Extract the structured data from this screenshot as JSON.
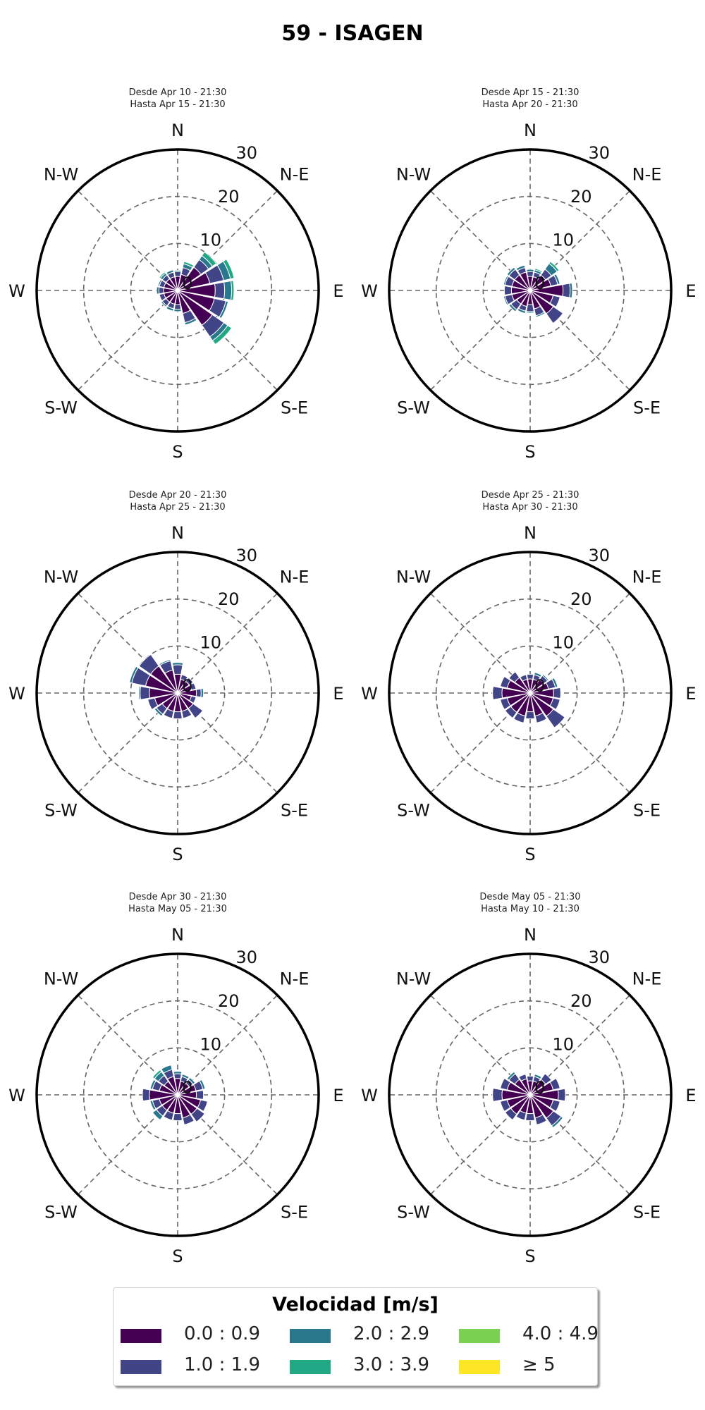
{
  "title": "59 - ISAGEN",
  "colors": {
    "bins": [
      "#440154",
      "#414487",
      "#2a788e",
      "#22a884",
      "#7ad151",
      "#fde725"
    ],
    "grid": "#666666",
    "frame": "#000000"
  },
  "chart_data": {
    "type": "windrose",
    "direction_count": 16,
    "radial_ticks": [
      0,
      10,
      20,
      30
    ],
    "rmax": 30,
    "grid": true,
    "direction_labels": [
      "N",
      "N-E",
      "E",
      "S-E",
      "S",
      "S-W",
      "W",
      "N-W"
    ],
    "legend": {
      "title": "Velocidad [m/s]",
      "position": "bottom-center",
      "bins": [
        "0.0 : 0.9",
        "1.0 : 1.9",
        "2.0 : 2.9",
        "3.0 : 3.9",
        "4.0 : 4.9",
        "≥  5"
      ]
    },
    "panels": [
      {
        "subtitle_line1": "Desde Apr 10 - 21:30",
        "subtitle_line2": "Hasta Apr 15 - 21:30",
        "directions_deg": [
          0,
          22.5,
          45,
          67.5,
          90,
          112.5,
          135,
          157.5,
          180,
          202.5,
          225,
          247.5,
          270,
          292.5,
          315,
          337.5
        ],
        "segments": [
          [
            3,
            1,
            0.3,
            0,
            0,
            0
          ],
          [
            3.5,
            1.5,
            0.8,
            0.5,
            0,
            0
          ],
          [
            6,
            2,
            1,
            1,
            0,
            0
          ],
          [
            7,
            3,
            1.5,
            0.8,
            0,
            0
          ],
          [
            8,
            2,
            1.5,
            0.5,
            0,
            0
          ],
          [
            8,
            2.5,
            0.5,
            0,
            0,
            0
          ],
          [
            9,
            3,
            1,
            1,
            0,
            0
          ],
          [
            5,
            2,
            0.5,
            0,
            0,
            0
          ],
          [
            3,
            1,
            0.5,
            0,
            0,
            0
          ],
          [
            3,
            1,
            0.5,
            0,
            0,
            0
          ],
          [
            3,
            1,
            0.3,
            0,
            0,
            0
          ],
          [
            3,
            1,
            0,
            0,
            0,
            0
          ],
          [
            3,
            1,
            0.5,
            0,
            0,
            0
          ],
          [
            3,
            1,
            0.3,
            0,
            0,
            0
          ],
          [
            3,
            1,
            0.5,
            0.3,
            0,
            0
          ],
          [
            3,
            1,
            0.5,
            0,
            0,
            0
          ]
        ]
      },
      {
        "subtitle_line1": "Desde Apr 15 - 21:30",
        "subtitle_line2": "Hasta Apr 20 - 21:30",
        "directions_deg": [
          0,
          22.5,
          45,
          67.5,
          90,
          112.5,
          135,
          157.5,
          180,
          202.5,
          225,
          247.5,
          270,
          292.5,
          315,
          337.5
        ],
        "segments": [
          [
            3,
            1,
            0.5,
            0,
            0,
            0
          ],
          [
            3,
            1,
            0.5,
            0.3,
            0,
            0
          ],
          [
            4,
            1.5,
            1.5,
            0.5,
            0,
            0
          ],
          [
            4.5,
            1.5,
            0.5,
            0,
            0,
            0
          ],
          [
            7,
            1.5,
            0.5,
            0,
            0,
            0
          ],
          [
            5,
            1.5,
            0,
            0,
            0,
            0
          ],
          [
            6,
            2.5,
            0,
            0,
            0,
            0
          ],
          [
            4,
            1.5,
            0.3,
            0,
            0,
            0
          ],
          [
            3,
            1.5,
            0.3,
            0,
            0,
            0
          ],
          [
            3.5,
            1,
            0.5,
            0,
            0,
            0
          ],
          [
            3.5,
            1.5,
            0.5,
            0,
            0,
            0
          ],
          [
            4,
            1.5,
            0.3,
            0,
            0,
            0
          ],
          [
            4,
            1.5,
            0,
            0,
            0,
            0
          ],
          [
            4,
            1.5,
            0.3,
            0,
            0,
            0
          ],
          [
            4,
            1.5,
            0.5,
            0,
            0,
            0
          ],
          [
            4,
            1,
            0.5,
            0,
            0,
            0
          ]
        ]
      },
      {
        "subtitle_line1": "Desde Apr 20 - 21:30",
        "subtitle_line2": "Hasta Apr 25 - 21:30",
        "directions_deg": [
          0,
          22.5,
          45,
          67.5,
          90,
          112.5,
          135,
          157.5,
          180,
          202.5,
          225,
          247.5,
          270,
          292.5,
          315,
          337.5
        ],
        "segments": [
          [
            4,
            2,
            0.5,
            0,
            0,
            0
          ],
          [
            3,
            1,
            0,
            0,
            0,
            0
          ],
          [
            3,
            1,
            0,
            0,
            0,
            0
          ],
          [
            3,
            1,
            0,
            0,
            0,
            0
          ],
          [
            4,
            1,
            0.5,
            0,
            0,
            0
          ],
          [
            3,
            1,
            0,
            0,
            0,
            0
          ],
          [
            4,
            2.5,
            0,
            0,
            0,
            0
          ],
          [
            4,
            1.5,
            0,
            0,
            0,
            0
          ],
          [
            4,
            1.5,
            0,
            0,
            0,
            0
          ],
          [
            4,
            1.5,
            0,
            0,
            0,
            0
          ],
          [
            4,
            1.5,
            0.5,
            0,
            0,
            0
          ],
          [
            5,
            1.5,
            0,
            0,
            0,
            0
          ],
          [
            6,
            2,
            0.3,
            0,
            0,
            0
          ],
          [
            7,
            3,
            0.5,
            0,
            0,
            0
          ],
          [
            7,
            3,
            0,
            0,
            0,
            0
          ],
          [
            5,
            2,
            0.3,
            0,
            0,
            0
          ]
        ]
      },
      {
        "subtitle_line1": "Desde Apr 25 - 21:30",
        "subtitle_line2": "Hasta Apr 30 - 21:30",
        "directions_deg": [
          0,
          22.5,
          45,
          67.5,
          90,
          112.5,
          135,
          157.5,
          180,
          202.5,
          225,
          247.5,
          270,
          292.5,
          315,
          337.5
        ],
        "segments": [
          [
            3,
            1,
            0,
            0,
            0,
            0
          ],
          [
            3,
            1,
            0.5,
            0,
            0,
            0
          ],
          [
            3.5,
            1,
            0.3,
            0,
            0,
            0
          ],
          [
            4,
            1.5,
            0.5,
            0,
            0,
            0
          ],
          [
            5,
            1.5,
            0,
            0,
            0,
            0
          ],
          [
            5,
            1.5,
            0,
            0,
            0,
            0
          ],
          [
            6,
            3,
            0,
            0,
            0,
            0
          ],
          [
            5,
            1.5,
            0,
            0,
            0,
            0
          ],
          [
            4,
            1.5,
            0,
            0,
            0,
            0
          ],
          [
            5,
            1.5,
            0,
            0,
            0,
            0
          ],
          [
            5,
            1.5,
            0,
            0,
            0,
            0
          ],
          [
            5,
            1.5,
            0,
            0,
            0,
            0
          ],
          [
            6,
            2,
            0,
            0,
            0,
            0
          ],
          [
            5,
            1.5,
            0,
            0,
            0,
            0
          ],
          [
            4,
            1.5,
            0,
            0,
            0,
            0
          ],
          [
            3,
            1,
            0,
            0,
            0,
            0
          ]
        ]
      },
      {
        "subtitle_line1": "Desde Apr 30 - 21:30",
        "subtitle_line2": "Hasta May 05 - 21:30",
        "directions_deg": [
          0,
          22.5,
          45,
          67.5,
          90,
          112.5,
          135,
          157.5,
          180,
          202.5,
          225,
          247.5,
          270,
          292.5,
          315,
          337.5
        ],
        "segments": [
          [
            3.5,
            1,
            0.5,
            0,
            0,
            0
          ],
          [
            3,
            1,
            0.5,
            0,
            0,
            0
          ],
          [
            3,
            1,
            0.5,
            0,
            0,
            0
          ],
          [
            4,
            1.5,
            0.5,
            0,
            0,
            0
          ],
          [
            4,
            1.5,
            0,
            0,
            0,
            0
          ],
          [
            5,
            1.5,
            0,
            0,
            0,
            0
          ],
          [
            5,
            2,
            0,
            0,
            0,
            0
          ],
          [
            5,
            1.5,
            0,
            0,
            0,
            0
          ],
          [
            4,
            1.5,
            0,
            0,
            0,
            0
          ],
          [
            4,
            1.5,
            0,
            0,
            0,
            0
          ],
          [
            4,
            1.5,
            1,
            0,
            0,
            0
          ],
          [
            4,
            1.5,
            0.5,
            0,
            0,
            0
          ],
          [
            6,
            1.5,
            0,
            0,
            0,
            0
          ],
          [
            4,
            1.5,
            0.5,
            0,
            0,
            0
          ],
          [
            3.5,
            1.5,
            1,
            0.5,
            0,
            0
          ],
          [
            4,
            1.5,
            1,
            0,
            0,
            0
          ]
        ]
      },
      {
        "subtitle_line1": "Desde May 05 - 21:30",
        "subtitle_line2": "Hasta May 10 - 21:30",
        "directions_deg": [
          0,
          22.5,
          45,
          67.5,
          90,
          112.5,
          135,
          157.5,
          180,
          202.5,
          225,
          247.5,
          270,
          292.5,
          315,
          337.5
        ],
        "segments": [
          [
            3,
            1,
            0,
            0,
            0,
            0
          ],
          [
            3,
            1,
            0.5,
            0,
            0,
            0
          ],
          [
            4,
            1.5,
            0,
            0,
            0,
            0
          ],
          [
            5,
            1.5,
            0,
            0,
            0,
            0
          ],
          [
            6,
            1.5,
            0,
            0,
            0,
            0
          ],
          [
            5,
            1.5,
            0,
            0,
            0,
            0
          ],
          [
            6,
            2,
            0.5,
            0,
            0,
            0
          ],
          [
            5,
            1.5,
            0,
            0,
            0,
            0
          ],
          [
            4,
            1.5,
            0,
            0,
            0,
            0
          ],
          [
            4,
            1.5,
            0,
            0,
            0,
            0
          ],
          [
            5,
            1.5,
            0,
            0,
            0,
            0
          ],
          [
            5,
            1.5,
            0,
            0,
            0,
            0
          ],
          [
            6,
            2,
            0,
            0,
            0,
            0
          ],
          [
            5,
            1.5,
            0,
            0,
            0,
            0
          ],
          [
            4,
            1.5,
            0.5,
            0,
            0,
            0
          ],
          [
            3.5,
            1,
            0,
            0,
            0,
            0
          ]
        ]
      }
    ]
  }
}
